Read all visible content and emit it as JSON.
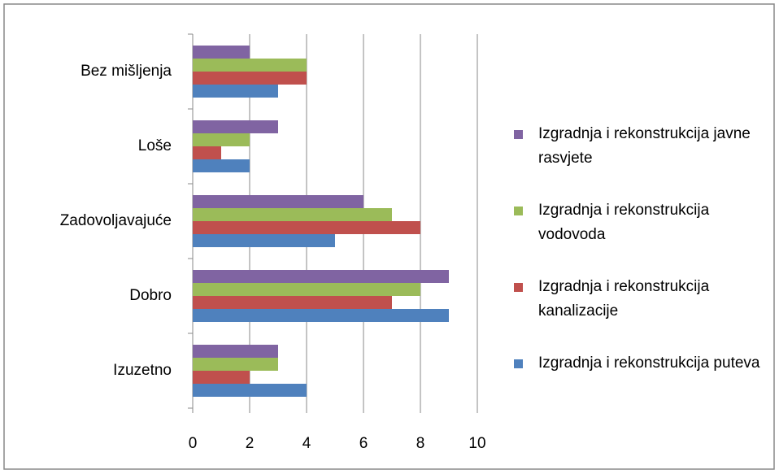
{
  "chart_data": {
    "type": "hbar",
    "categories": [
      "Izuzetno",
      "Dobro",
      "Zadovoljavajuće",
      "Loše",
      "Bez mišljenja"
    ],
    "series": [
      {
        "name": "Izgradnja i rekonstrukcija puteva",
        "color": "#4f81bd",
        "values": [
          4,
          9,
          5,
          2,
          3
        ]
      },
      {
        "name": "Izgradnja i rekonstrukcija kanalizacije",
        "color": "#c0504d",
        "values": [
          2,
          7,
          8,
          1,
          4
        ]
      },
      {
        "name": "Izgradnja i rekonstrukcija vodovoda",
        "color": "#9bbb59",
        "values": [
          3,
          8,
          7,
          2,
          4
        ]
      },
      {
        "name": "Izgradnja i rekonstrukcija javne rasvjete",
        "color": "#8064a2",
        "values": [
          3,
          9,
          6,
          3,
          2
        ]
      }
    ],
    "xlim": [
      0,
      10
    ],
    "xticks": [
      0,
      2,
      4,
      6,
      8,
      10
    ],
    "grid": true,
    "legend": "right"
  }
}
